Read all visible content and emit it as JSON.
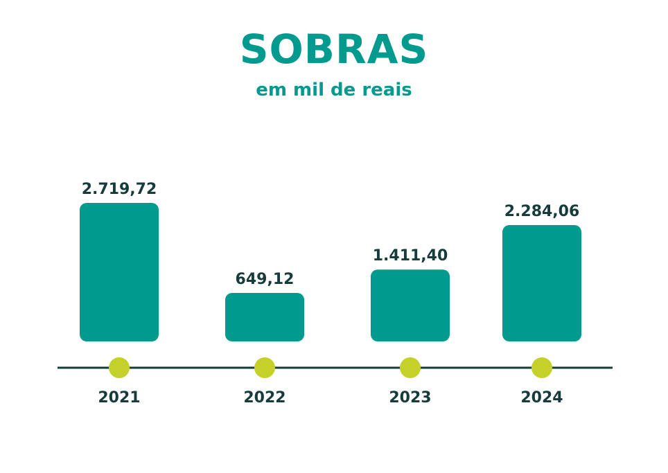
{
  "colors": {
    "bar": "#009a8e",
    "title": "#009a8e",
    "axis": "#153c3b",
    "marker": "#c3d12a",
    "label": "#153c3b"
  },
  "chart_data": {
    "type": "bar",
    "title": "SOBRAS",
    "subtitle": "em mil de reais",
    "categories": [
      "2021",
      "2022",
      "2023",
      "2024"
    ],
    "values": [
      2719.72,
      649.12,
      1411.4,
      2284.06
    ],
    "value_labels": [
      "2.719,72",
      "649,12",
      "1.411,40",
      "2.284,06"
    ],
    "xlabel": "",
    "ylabel": "",
    "grid": false,
    "legend": "none"
  }
}
